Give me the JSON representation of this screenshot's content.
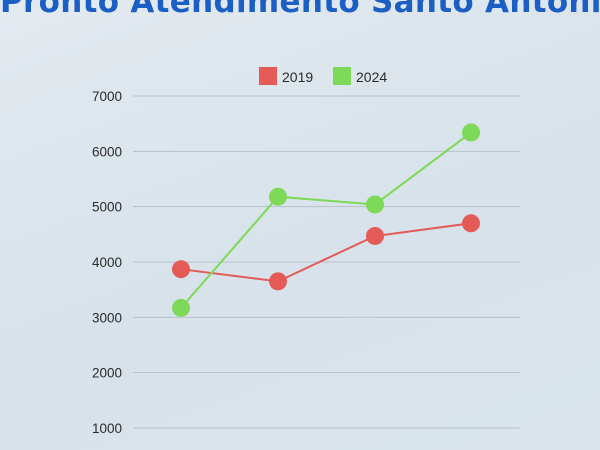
{
  "chart_data": {
    "type": "line",
    "title": "Pronto Atendimento Santo Antônio",
    "categories": [
      "",
      "",
      "",
      ""
    ],
    "series": [
      {
        "name": "2019",
        "color": "#e45a57",
        "values": [
          3870,
          3650,
          4470,
          4700
        ]
      },
      {
        "name": "2024",
        "color": "#7dd957",
        "values": [
          3170,
          5180,
          5040,
          6340
        ]
      }
    ],
    "yticks": [
      1000,
      2000,
      3000,
      4000,
      5000,
      6000,
      7000
    ],
    "ylim": [
      1000,
      7000
    ],
    "grid": true,
    "legend_position": "top-center",
    "xlabel": "",
    "ylabel": ""
  }
}
